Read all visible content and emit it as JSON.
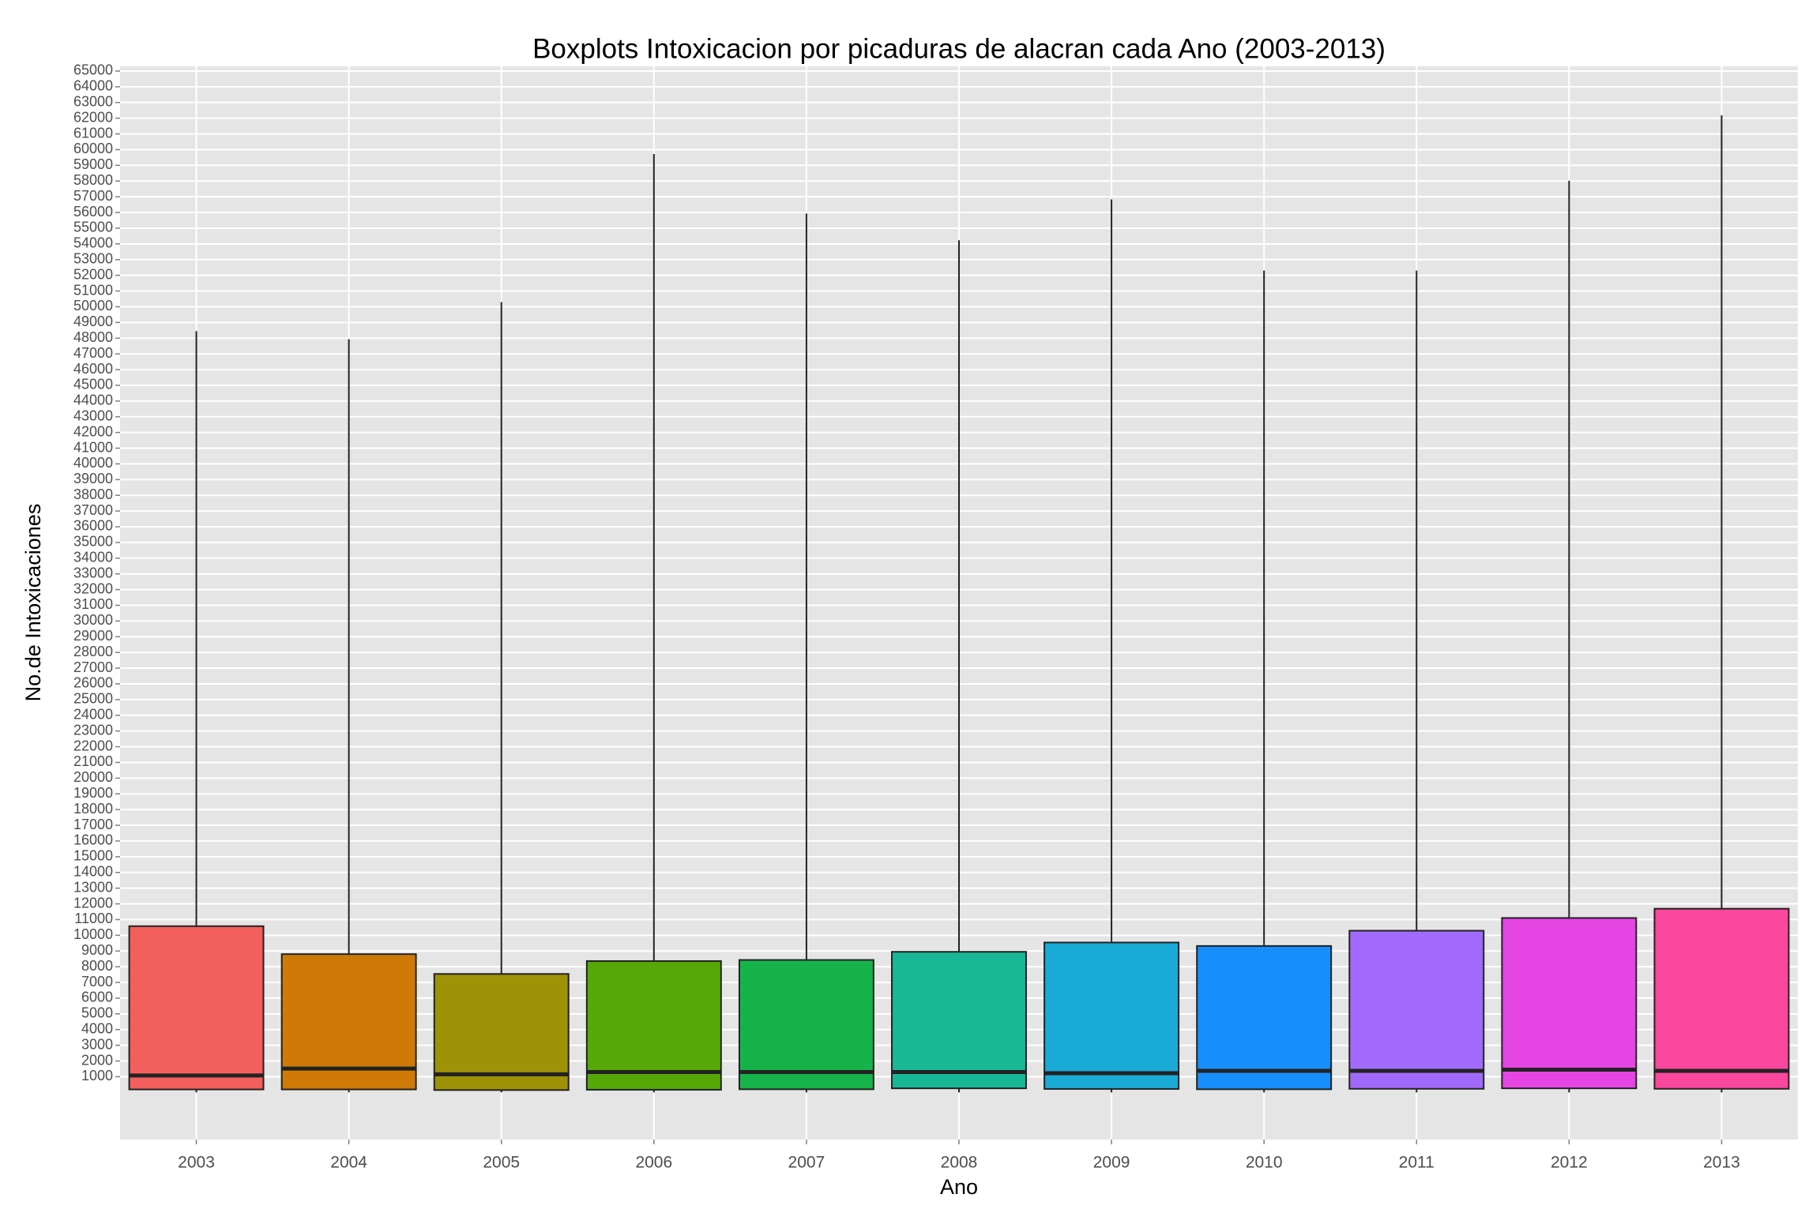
{
  "chart_data": {
    "type": "box",
    "title": "Boxplots Intoxicacion por picaduras de alacran cada Ano (2003-2013)",
    "x_label": "Ano",
    "y_label": "No.de Intoxicaciones",
    "categories": [
      "2003",
      "2004",
      "2005",
      "2006",
      "2007",
      "2008",
      "2009",
      "2010",
      "2011",
      "2012",
      "2013"
    ],
    "colors": [
      "#F35F5C",
      "#CF7A07",
      "#9E9206",
      "#55A808",
      "#16B34B",
      "#18B897",
      "#19ABD6",
      "#168EFC",
      "#A16AFC",
      "#E545E3",
      "#FC479F"
    ],
    "min": [
      0,
      0,
      0,
      0,
      0,
      0,
      0,
      0,
      0,
      0,
      0
    ],
    "q1": [
      190,
      190,
      150,
      170,
      200,
      260,
      220,
      200,
      230,
      260,
      230
    ],
    "median": [
      1080,
      1520,
      1150,
      1300,
      1300,
      1300,
      1220,
      1370,
      1370,
      1450,
      1370
    ],
    "q3": [
      10580,
      8800,
      7540,
      8360,
      8430,
      8950,
      9540,
      9320,
      10290,
      11100,
      11690
    ],
    "max": [
      48450,
      47930,
      50300,
      59720,
      55930,
      54230,
      56830,
      52300,
      52300,
      58020,
      62180
    ],
    "ylim": [
      -3000,
      65300
    ],
    "yticks": [
      1000,
      2000,
      3000,
      4000,
      5000,
      6000,
      7000,
      8000,
      9000,
      10000,
      11000,
      12000,
      13000,
      14000,
      15000,
      16000,
      17000,
      18000,
      19000,
      20000,
      21000,
      22000,
      23000,
      24000,
      25000,
      26000,
      27000,
      28000,
      29000,
      30000,
      31000,
      32000,
      33000,
      34000,
      35000,
      36000,
      37000,
      38000,
      39000,
      40000,
      41000,
      42000,
      43000,
      44000,
      45000,
      46000,
      47000,
      48000,
      49000,
      50000,
      51000,
      52000,
      53000,
      54000,
      55000,
      56000,
      57000,
      58000,
      59000,
      60000,
      61000,
      62000,
      63000,
      64000,
      65000
    ],
    "grid": true
  }
}
